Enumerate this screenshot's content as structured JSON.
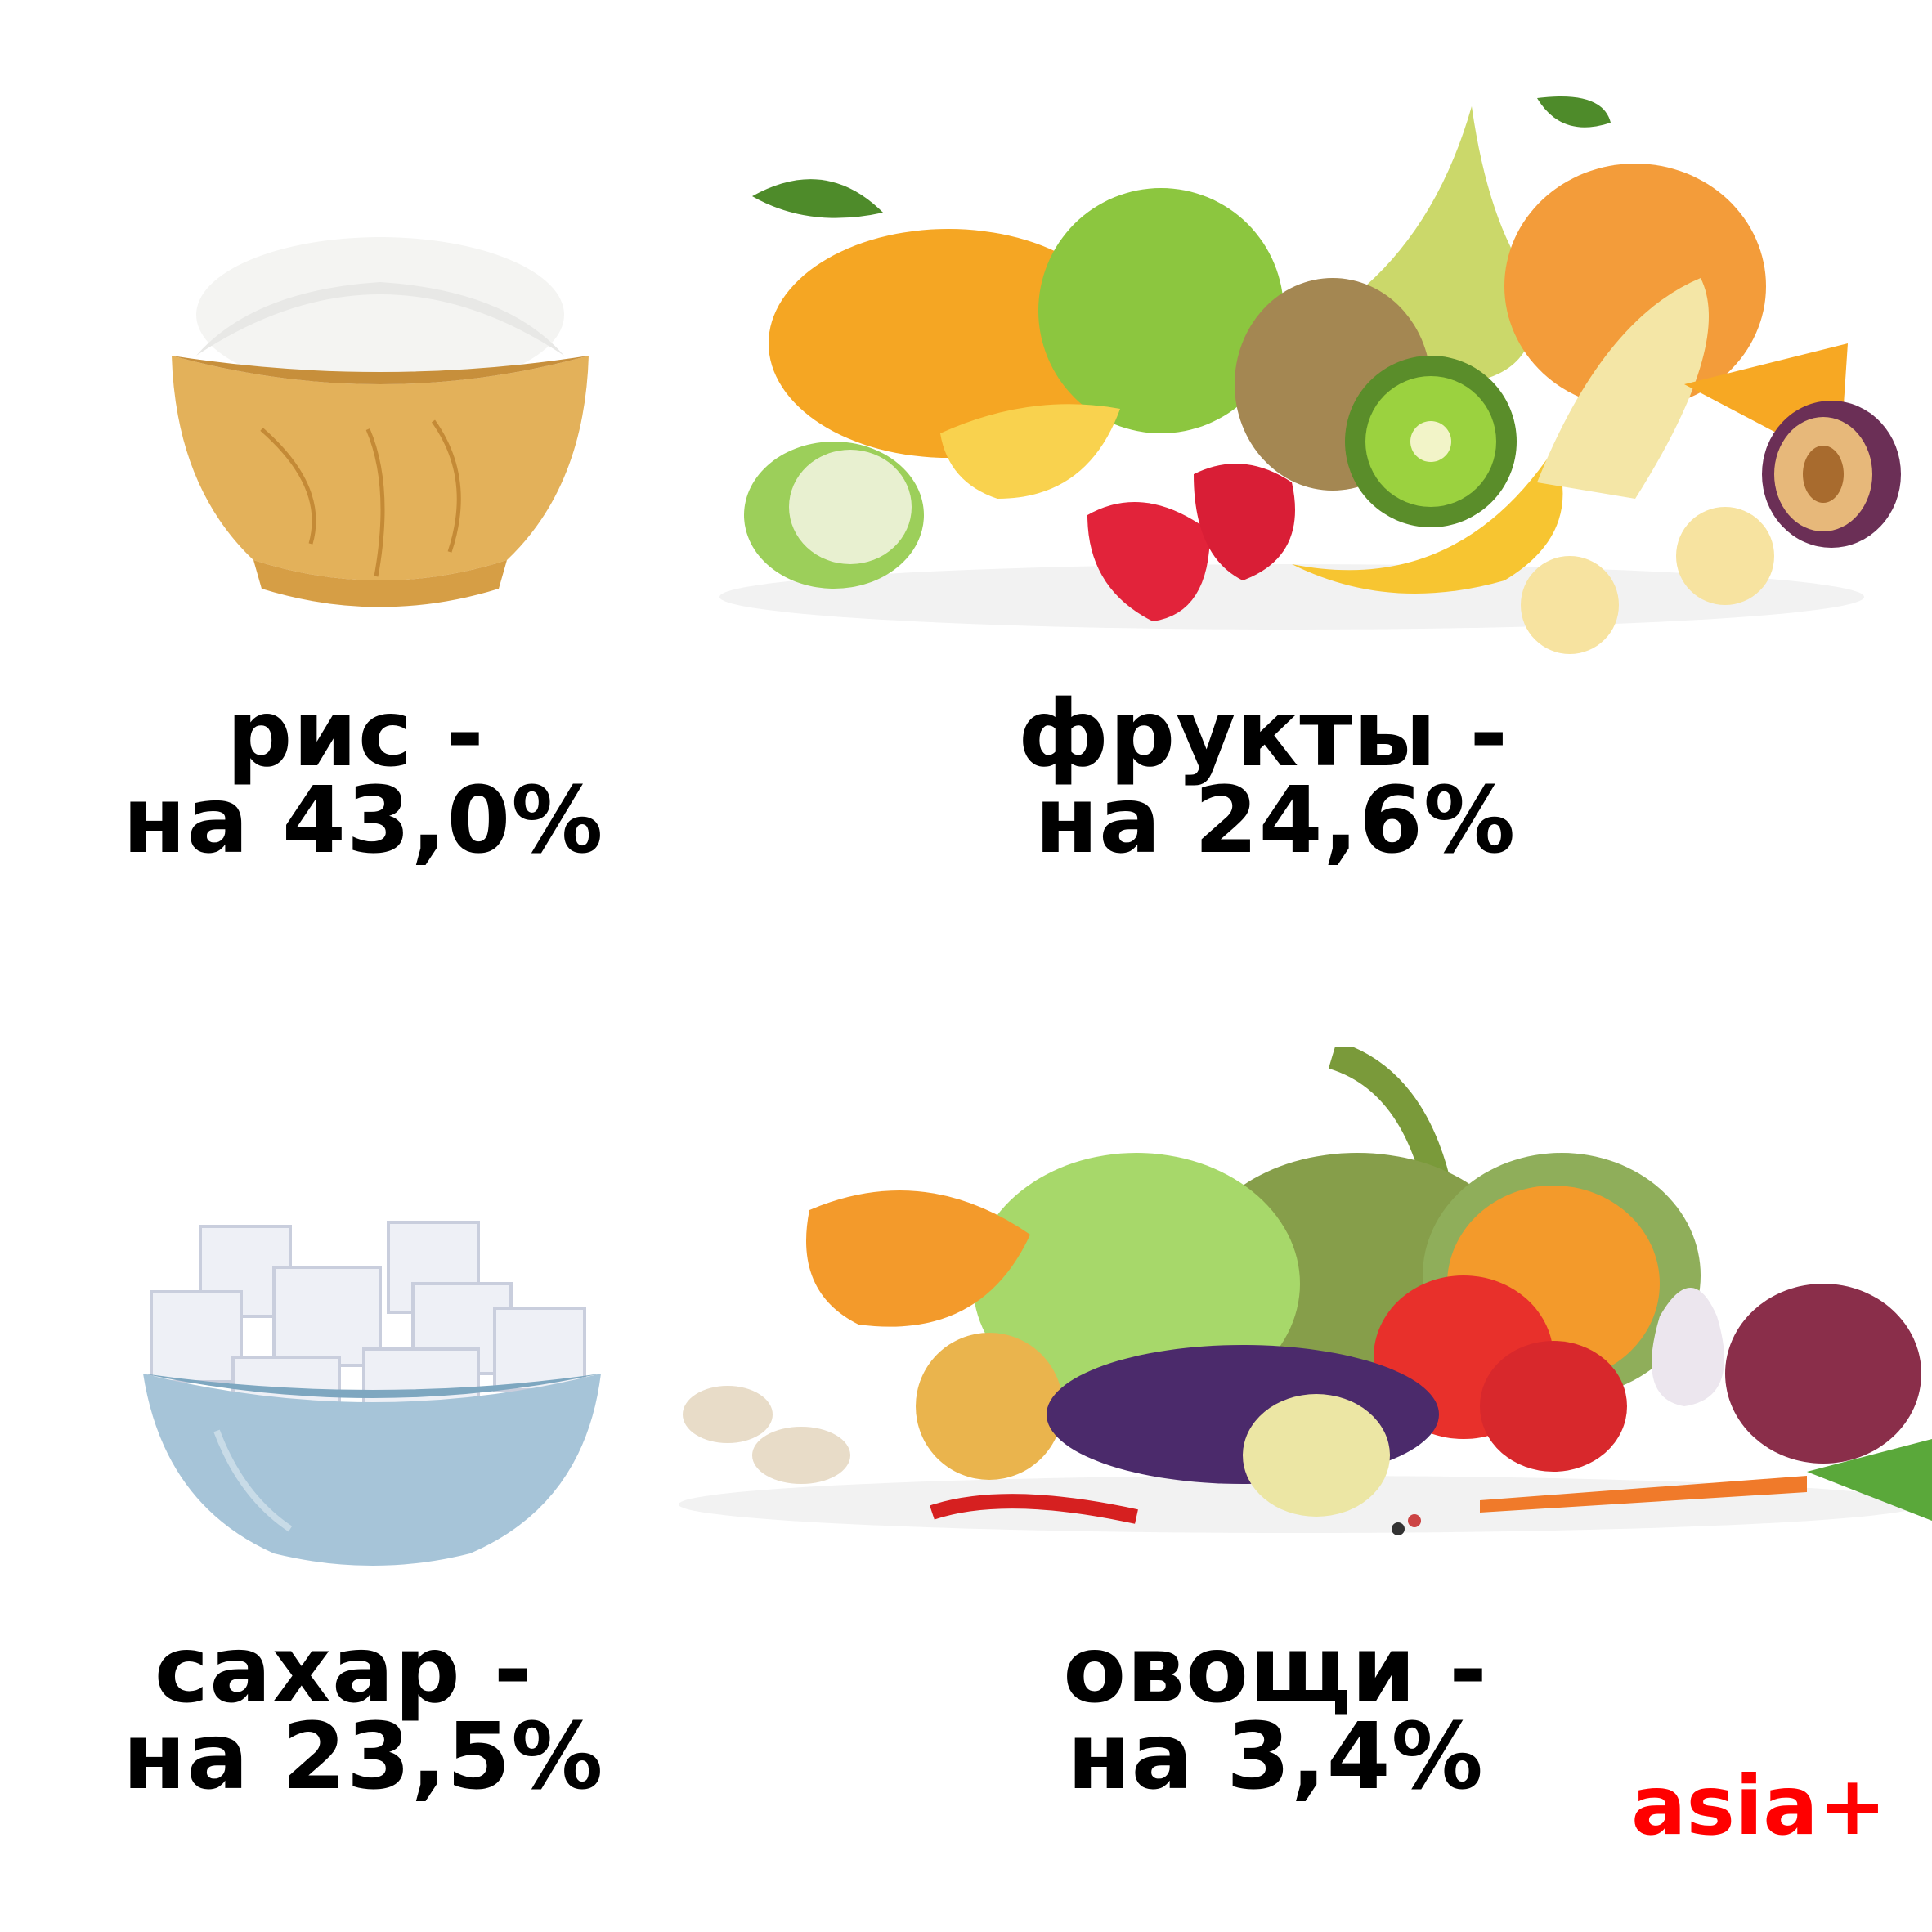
{
  "items": [
    {
      "name": "рис -",
      "value": "на 43,0%",
      "icon": "rice-bowl"
    },
    {
      "name": "фрукты -",
      "value": "на 24,6%",
      "icon": "fruits"
    },
    {
      "name": "сахар -",
      "value": "на 23,5%",
      "icon": "sugar-bowl"
    },
    {
      "name": "овощи -",
      "value": "на 3,4%",
      "icon": "vegetables"
    }
  ],
  "logo": "asia+",
  "colors": {
    "logo": "#ff0000",
    "text": "#000000"
  }
}
